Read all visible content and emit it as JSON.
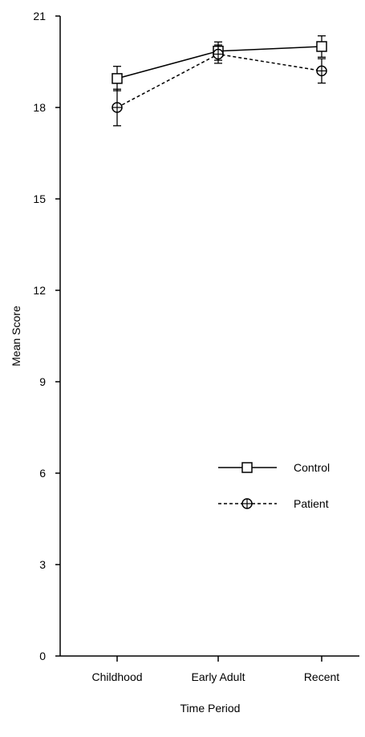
{
  "chart_data": {
    "type": "line",
    "xlabel": "Time Period",
    "ylabel": "Mean Score",
    "categories": [
      "Childhood",
      "Early Adult",
      "Recent"
    ],
    "ylim": [
      0,
      21
    ],
    "yticks": [
      0,
      3,
      6,
      9,
      12,
      15,
      18,
      21
    ],
    "legend_position": "lower-right",
    "grid": false,
    "series": [
      {
        "name": "Control",
        "values": [
          18.95,
          19.85,
          20.0
        ],
        "error": [
          0.4,
          0.3,
          0.35
        ],
        "line_style": "solid",
        "marker": "square"
      },
      {
        "name": "Patient",
        "values": [
          18.0,
          19.75,
          19.2
        ],
        "error": [
          0.6,
          0.3,
          0.4
        ],
        "line_style": "dashed",
        "marker": "circle-plus"
      }
    ]
  }
}
